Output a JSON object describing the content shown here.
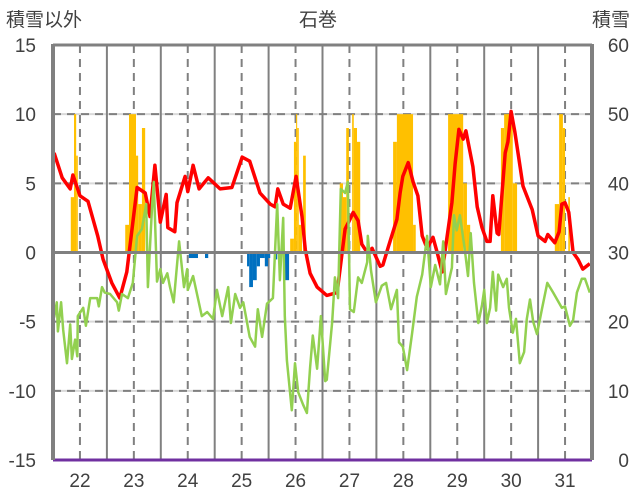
{
  "chart_data": {
    "type": "line",
    "title": "石巻",
    "ylabel_left": "積雪以外",
    "ylabel_right": "積雪",
    "xlim": [
      21.5,
      31.5
    ],
    "ylim_left": [
      -15,
      15
    ],
    "ylim_right": [
      0,
      60
    ],
    "x_ticks": [
      "22",
      "23",
      "24",
      "25",
      "26",
      "27",
      "28",
      "29",
      "30",
      "31"
    ],
    "y_ticks_left": [
      "15",
      "10",
      "5",
      "0",
      "-5",
      "-10",
      "-15"
    ],
    "y_ticks_right": [
      "60",
      "50",
      "40",
      "30",
      "20",
      "10",
      "0"
    ],
    "grid": true,
    "colors": {
      "red": "#ff0000",
      "green": "#92d050",
      "orange": "#ffc000",
      "blue": "#0070c0",
      "purple": "#7030a0",
      "axis": "#808080"
    },
    "series": [
      {
        "name": "red-line",
        "axis": "left",
        "points": [
          [
            21.52,
            7.2
          ],
          [
            21.67,
            5.4
          ],
          [
            21.82,
            4.6
          ],
          [
            21.87,
            5.6
          ],
          [
            22.0,
            4.1
          ],
          [
            22.15,
            3.7
          ],
          [
            22.33,
            1.2
          ],
          [
            22.43,
            -0.5
          ],
          [
            22.59,
            -2.2
          ],
          [
            22.74,
            -3.3
          ],
          [
            22.87,
            -1.4
          ],
          [
            23.06,
            4.7
          ],
          [
            23.21,
            4.3
          ],
          [
            23.3,
            2.6
          ],
          [
            23.39,
            6.3
          ],
          [
            23.49,
            2.2
          ],
          [
            23.6,
            4.2
          ],
          [
            23.63,
            1.8
          ],
          [
            23.76,
            1.5
          ],
          [
            23.8,
            3.6
          ],
          [
            23.95,
            5.5
          ],
          [
            24.0,
            4.4
          ],
          [
            24.1,
            6.3
          ],
          [
            24.21,
            4.6
          ],
          [
            24.38,
            5.4
          ],
          [
            24.6,
            4.6
          ],
          [
            24.82,
            4.7
          ],
          [
            25.01,
            6.9
          ],
          [
            25.15,
            6.6
          ],
          [
            25.34,
            4.3
          ],
          [
            25.53,
            3.5
          ],
          [
            25.62,
            3.3
          ],
          [
            25.67,
            4.6
          ],
          [
            25.77,
            3.5
          ],
          [
            25.9,
            3.2
          ],
          [
            26.01,
            5.5
          ],
          [
            26.12,
            2.6
          ],
          [
            26.18,
            0.2
          ],
          [
            26.27,
            -1.5
          ],
          [
            26.4,
            -2.5
          ],
          [
            26.58,
            -3.1
          ],
          [
            26.77,
            -2.9
          ],
          [
            26.92,
            1.7
          ],
          [
            27.01,
            2.4
          ],
          [
            27.07,
            2.9
          ],
          [
            27.16,
            2.3
          ],
          [
            27.23,
            0.6
          ],
          [
            27.33,
            0.0
          ],
          [
            27.42,
            0.3
          ],
          [
            27.57,
            -1.0
          ],
          [
            27.62,
            -0.9
          ],
          [
            27.72,
            0.4
          ],
          [
            27.88,
            2.4
          ],
          [
            27.94,
            4.3
          ],
          [
            27.99,
            5.5
          ],
          [
            28.09,
            6.5
          ],
          [
            28.18,
            5.1
          ],
          [
            28.27,
            4.1
          ],
          [
            28.35,
            1.2
          ],
          [
            28.44,
            0.3
          ],
          [
            28.55,
            1.1
          ],
          [
            28.62,
            0.1
          ],
          [
            28.72,
            -1.4
          ],
          [
            28.81,
            1.1
          ],
          [
            28.9,
            3.6
          ],
          [
            28.96,
            6.4
          ],
          [
            29.03,
            8.9
          ],
          [
            29.11,
            8.2
          ],
          [
            29.16,
            8.8
          ],
          [
            29.29,
            6.2
          ],
          [
            29.37,
            3.3
          ],
          [
            29.46,
            1.8
          ],
          [
            29.55,
            0.8
          ],
          [
            29.61,
            0.8
          ],
          [
            29.66,
            4.1
          ],
          [
            29.74,
            1.4
          ],
          [
            29.77,
            1.3
          ],
          [
            29.89,
            7.2
          ],
          [
            29.94,
            8.0
          ],
          [
            30.0,
            10.2
          ],
          [
            30.07,
            8.7
          ],
          [
            30.22,
            4.8
          ],
          [
            30.39,
            3.1
          ],
          [
            30.5,
            1.2
          ],
          [
            30.63,
            0.8
          ],
          [
            30.68,
            1.3
          ],
          [
            30.81,
            0.7
          ],
          [
            30.89,
            1.5
          ],
          [
            30.94,
            3.5
          ],
          [
            31.0,
            3.6
          ],
          [
            31.07,
            2.9
          ],
          [
            31.15,
            0.0
          ],
          [
            31.24,
            -0.5
          ],
          [
            31.33,
            -1.2
          ],
          [
            31.46,
            -0.8
          ]
        ]
      },
      {
        "name": "green-line",
        "axis": "left",
        "points": [
          [
            21.52,
            -4.7
          ],
          [
            21.57,
            -3.6
          ],
          [
            21.59,
            -5.7
          ],
          [
            21.65,
            -3.6
          ],
          [
            21.69,
            -5.6
          ],
          [
            21.76,
            -8.0
          ],
          [
            21.82,
            -5.2
          ],
          [
            21.85,
            -7.7
          ],
          [
            21.91,
            -6.3
          ],
          [
            21.95,
            -7.5
          ],
          [
            21.96,
            -4.6
          ],
          [
            22.06,
            -4.0
          ],
          [
            22.11,
            -5.3
          ],
          [
            22.19,
            -3.3
          ],
          [
            22.32,
            -3.3
          ],
          [
            22.35,
            -3.9
          ],
          [
            22.41,
            -2.5
          ],
          [
            22.46,
            -2.9
          ],
          [
            22.56,
            -3.0
          ],
          [
            22.69,
            -3.6
          ],
          [
            22.72,
            -4.2
          ],
          [
            22.78,
            -3.0
          ],
          [
            22.89,
            -3.3
          ],
          [
            22.98,
            -2.2
          ],
          [
            23.06,
            1.2
          ],
          [
            23.15,
            1.7
          ],
          [
            23.23,
            3.5
          ],
          [
            23.26,
            -2.5
          ],
          [
            23.34,
            3.5
          ],
          [
            23.37,
            5.1
          ],
          [
            23.43,
            -2.1
          ],
          [
            23.49,
            -1.2
          ],
          [
            23.54,
            -2.2
          ],
          [
            23.62,
            -1.5
          ],
          [
            23.67,
            -2.5
          ],
          [
            23.74,
            -3.6
          ],
          [
            23.84,
            0.8
          ],
          [
            23.93,
            -2.5
          ],
          [
            23.99,
            -1.2
          ],
          [
            24.0,
            -2.7
          ],
          [
            24.1,
            -1.7
          ],
          [
            24.26,
            -4.6
          ],
          [
            24.36,
            -4.3
          ],
          [
            24.47,
            -4.8
          ],
          [
            24.54,
            -2.7
          ],
          [
            24.64,
            -4.6
          ],
          [
            24.75,
            -2.5
          ],
          [
            24.8,
            -5.1
          ],
          [
            24.88,
            -3.0
          ],
          [
            24.97,
            -4.0
          ],
          [
            25.03,
            -3.6
          ],
          [
            25.15,
            -6.1
          ],
          [
            25.25,
            -6.8
          ],
          [
            25.3,
            -4.1
          ],
          [
            25.38,
            -6.1
          ],
          [
            25.47,
            -3.7
          ],
          [
            25.58,
            -3.3
          ],
          [
            25.66,
            3.5
          ],
          [
            25.71,
            -2.0
          ],
          [
            25.77,
            2.5
          ],
          [
            25.8,
            -4.6
          ],
          [
            25.84,
            -7.8
          ],
          [
            25.93,
            -11.4
          ],
          [
            25.99,
            -8.0
          ],
          [
            26.05,
            -10.1
          ],
          [
            26.14,
            -11.0
          ],
          [
            26.21,
            -11.6
          ],
          [
            26.27,
            -8.3
          ],
          [
            26.32,
            -6.0
          ],
          [
            26.4,
            -8.4
          ],
          [
            26.47,
            -4.6
          ],
          [
            26.55,
            -9.3
          ],
          [
            26.58,
            -9.2
          ],
          [
            26.68,
            -5.0
          ],
          [
            26.73,
            -1.8
          ],
          [
            26.79,
            -3.3
          ],
          [
            26.84,
            4.6
          ],
          [
            26.92,
            4.3
          ],
          [
            26.97,
            5.1
          ],
          [
            27.01,
            -4.1
          ],
          [
            27.08,
            -4.3
          ],
          [
            27.16,
            -1.8
          ],
          [
            27.23,
            -2.2
          ],
          [
            27.33,
            -0.7
          ],
          [
            27.34,
            1.2
          ],
          [
            27.4,
            -1.3
          ],
          [
            27.49,
            -3.6
          ],
          [
            27.6,
            -2.4
          ],
          [
            27.68,
            -2.2
          ],
          [
            27.77,
            -4.1
          ],
          [
            27.88,
            -2.7
          ],
          [
            27.92,
            -6.5
          ],
          [
            27.99,
            -6.8
          ],
          [
            28.07,
            -8.5
          ],
          [
            28.16,
            -5.9
          ],
          [
            28.25,
            -3.2
          ],
          [
            28.35,
            -1.6
          ],
          [
            28.44,
            1.2
          ],
          [
            28.51,
            -2.5
          ],
          [
            28.59,
            -0.9
          ],
          [
            28.68,
            -2.3
          ],
          [
            28.74,
            0.8
          ],
          [
            28.79,
            -3.0
          ],
          [
            28.9,
            -1.1
          ],
          [
            28.94,
            2.7
          ],
          [
            28.99,
            1.6
          ],
          [
            29.05,
            2.7
          ],
          [
            29.14,
            0.2
          ],
          [
            29.2,
            -1.7
          ],
          [
            29.25,
            1.4
          ],
          [
            29.31,
            -2.2
          ],
          [
            29.39,
            -5.1
          ],
          [
            29.46,
            -3.8
          ],
          [
            29.5,
            -2.7
          ],
          [
            29.55,
            -5.1
          ],
          [
            29.61,
            -4.0
          ],
          [
            29.66,
            -1.4
          ],
          [
            29.72,
            -4.2
          ],
          [
            29.76,
            -1.6
          ],
          [
            29.85,
            -2.5
          ],
          [
            29.92,
            -1.9
          ],
          [
            29.96,
            -4.0
          ],
          [
            30.03,
            -5.8
          ],
          [
            30.09,
            -4.8
          ],
          [
            30.16,
            -8.0
          ],
          [
            30.24,
            -7.2
          ],
          [
            30.29,
            -4.8
          ],
          [
            30.35,
            -3.4
          ],
          [
            30.41,
            -5.0
          ],
          [
            30.48,
            -5.9
          ],
          [
            30.57,
            -4.1
          ],
          [
            30.67,
            -2.2
          ],
          [
            30.78,
            -2.9
          ],
          [
            30.94,
            -4.0
          ],
          [
            31.0,
            -3.9
          ],
          [
            31.09,
            -5.3
          ],
          [
            31.15,
            -4.9
          ],
          [
            31.22,
            -2.9
          ],
          [
            31.31,
            -1.9
          ],
          [
            31.37,
            -1.9
          ],
          [
            31.46,
            -2.9
          ]
        ]
      },
      {
        "name": "purple-line",
        "axis": "right",
        "points": [
          [
            21.5,
            0
          ],
          [
            31.5,
            0
          ]
        ]
      }
    ],
    "bars": [
      {
        "name": "orange-bars",
        "axis": "left",
        "runs": [
          [
            21.83,
            21.89,
            4.0
          ],
          [
            21.89,
            21.93,
            10
          ],
          [
            21.93,
            21.96,
            7
          ],
          [
            22.84,
            22.91,
            2
          ],
          [
            22.91,
            23.04,
            10
          ],
          [
            23.04,
            23.08,
            7
          ],
          [
            23.08,
            23.15,
            3.5
          ],
          [
            23.15,
            23.21,
            9
          ],
          [
            25.9,
            25.97,
            1
          ],
          [
            25.97,
            26.01,
            8
          ],
          [
            26.01,
            26.03,
            10
          ],
          [
            26.03,
            26.06,
            9
          ],
          [
            26.06,
            26.12,
            2
          ],
          [
            26.14,
            26.19,
            7
          ],
          [
            26.82,
            26.88,
            5
          ],
          [
            26.88,
            26.94,
            4
          ],
          [
            26.94,
            26.99,
            9
          ],
          [
            27.05,
            27.08,
            10
          ],
          [
            27.08,
            27.14,
            9
          ],
          [
            27.14,
            27.2,
            8
          ],
          [
            27.81,
            27.88,
            8
          ],
          [
            27.88,
            28.18,
            10
          ],
          [
            28.18,
            28.23,
            2
          ],
          [
            28.83,
            29.11,
            10
          ],
          [
            29.11,
            29.18,
            5
          ],
          [
            29.18,
            29.24,
            2
          ],
          [
            29.81,
            29.87,
            9
          ],
          [
            29.87,
            30.03,
            10
          ],
          [
            30.03,
            30.11,
            5
          ],
          [
            30.81,
            30.89,
            3.5
          ],
          [
            30.89,
            30.96,
            10
          ],
          [
            30.96,
            31.0,
            9
          ],
          [
            31.06,
            31.09,
            4
          ]
        ]
      },
      {
        "name": "blue-bars",
        "axis": "left",
        "runs": [
          [
            24.02,
            24.19,
            -0.4
          ],
          [
            24.32,
            24.38,
            -0.4
          ],
          [
            25.1,
            25.14,
            -1.0
          ],
          [
            25.14,
            25.21,
            -2.5
          ],
          [
            25.21,
            25.28,
            -2.0
          ],
          [
            25.28,
            25.34,
            -1.0
          ],
          [
            25.34,
            25.43,
            -0.4
          ],
          [
            25.43,
            25.49,
            -1.0
          ],
          [
            25.49,
            25.53,
            -0.4
          ],
          [
            25.6,
            25.66,
            -0.5
          ],
          [
            25.8,
            25.88,
            -2.0
          ]
        ]
      }
    ]
  }
}
